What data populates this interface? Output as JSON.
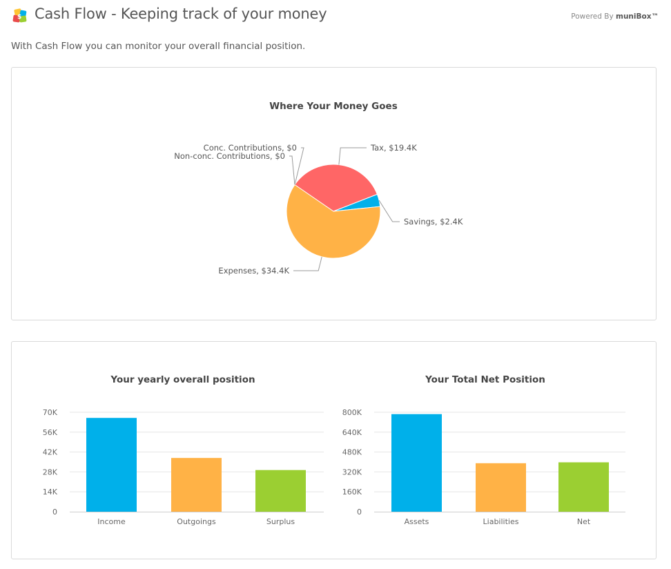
{
  "header": {
    "title": "Cash Flow - Keeping track of your money",
    "powered_prefix": "Powered By",
    "powered_brand": "muniBox™"
  },
  "intro": "With Cash Flow you can monitor your overall financial position.",
  "colors": {
    "tax": "#ff6666",
    "savings": "#00b0ea",
    "expenses": "#ffb246",
    "green": "#9bcf32",
    "grid": "#e6e6e6",
    "axis": "#cccccc"
  },
  "chart_data": [
    {
      "type": "pie",
      "title": "Where Your Money Goes",
      "slices": [
        {
          "name": "Tax",
          "value": 19.4,
          "label": "Tax, $19.4K",
          "color": "#ff6666"
        },
        {
          "name": "Savings",
          "value": 2.4,
          "label": "Savings, $2.4K",
          "color": "#00b0ea"
        },
        {
          "name": "Expenses",
          "value": 34.4,
          "label": "Expenses, $34.4K",
          "color": "#ffb246"
        },
        {
          "name": "Non-conc. Contributions",
          "value": 0,
          "label": "Non-conc. Contributions, $0",
          "color": "#9bcf32"
        },
        {
          "name": "Conc. Contributions",
          "value": 0,
          "label": "Conc. Contributions, $0",
          "color": "#9b6bcc"
        }
      ]
    },
    {
      "type": "bar",
      "title": "Your yearly overall position",
      "categories": [
        "Income",
        "Outgoings",
        "Surplus"
      ],
      "values": [
        66000,
        37800,
        29300
      ],
      "colors": [
        "#00b0ea",
        "#ffb246",
        "#9bcf32"
      ],
      "ylim": [
        0,
        70000
      ],
      "yticks": [
        0,
        14000,
        28000,
        42000,
        56000,
        70000
      ],
      "ytick_labels": [
        "0",
        "14K",
        "28K",
        "42K",
        "56K",
        "70K"
      ],
      "grid": true
    },
    {
      "type": "bar",
      "title": "Your Total Net Position",
      "categories": [
        "Assets",
        "Liabilities",
        "Net"
      ],
      "values": [
        785000,
        390000,
        397000
      ],
      "colors": [
        "#00b0ea",
        "#ffb246",
        "#9bcf32"
      ],
      "ylim": [
        0,
        800000
      ],
      "yticks": [
        0,
        160000,
        320000,
        480000,
        640000,
        800000
      ],
      "ytick_labels": [
        "0",
        "160K",
        "320K",
        "480K",
        "640K",
        "800K"
      ],
      "grid": true
    }
  ]
}
